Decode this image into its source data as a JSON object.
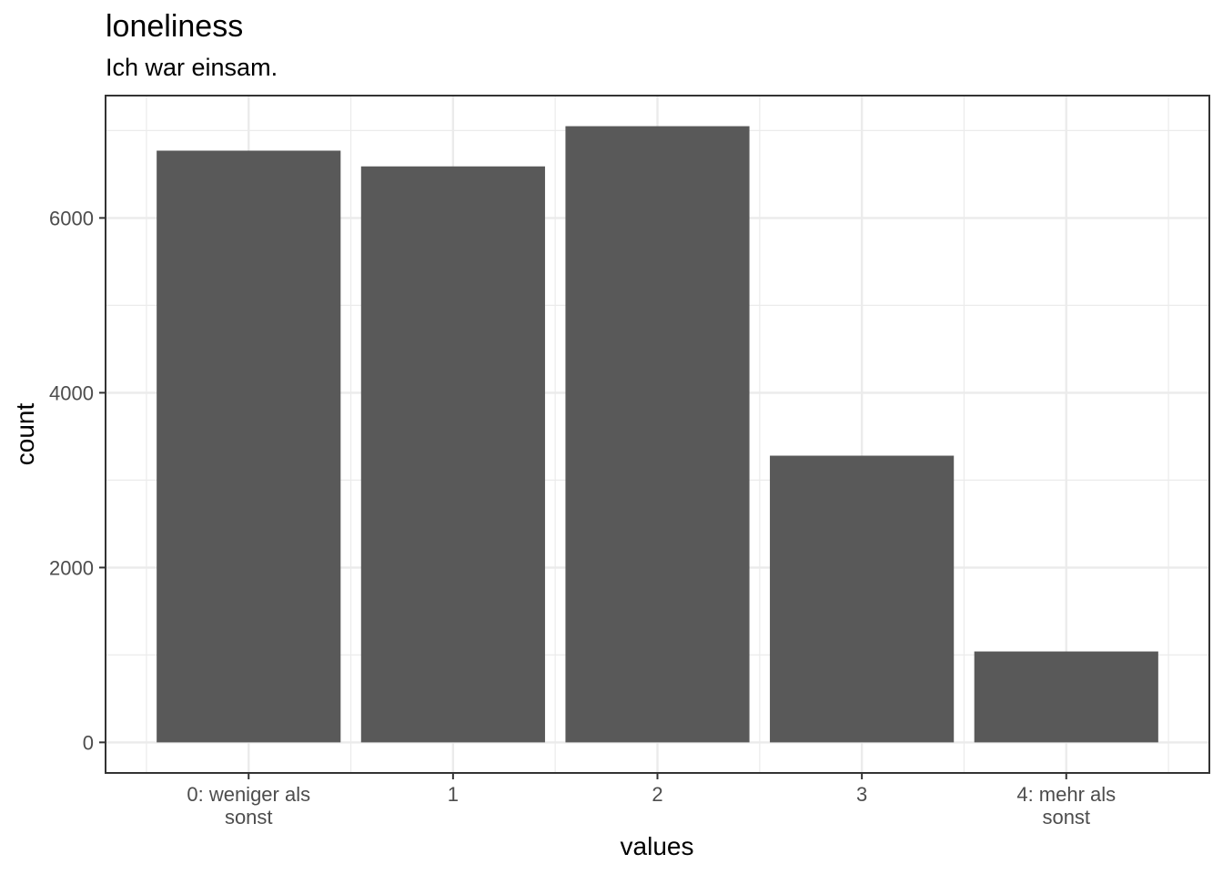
{
  "chart_data": {
    "type": "bar",
    "title": "loneliness",
    "subtitle": "Ich war einsam.",
    "xlabel": "values",
    "ylabel": "count",
    "categories": [
      [
        "0: weniger als",
        "sonst"
      ],
      [
        "1"
      ],
      [
        "2"
      ],
      [
        "3"
      ],
      [
        "4: mehr als",
        "sonst"
      ]
    ],
    "values": [
      6770,
      6590,
      7050,
      3280,
      1040
    ],
    "ylim": [
      -350,
      7400
    ],
    "yticks": [
      0,
      2000,
      4000,
      6000
    ],
    "yticks_minor": [
      1000,
      3000,
      5000,
      7000
    ],
    "grid": true,
    "legend": "none",
    "colors": {
      "bar": "#595959",
      "grid": "#ebebeb",
      "panel_border": "#333333",
      "tick_text": "#4d4d4d"
    }
  }
}
